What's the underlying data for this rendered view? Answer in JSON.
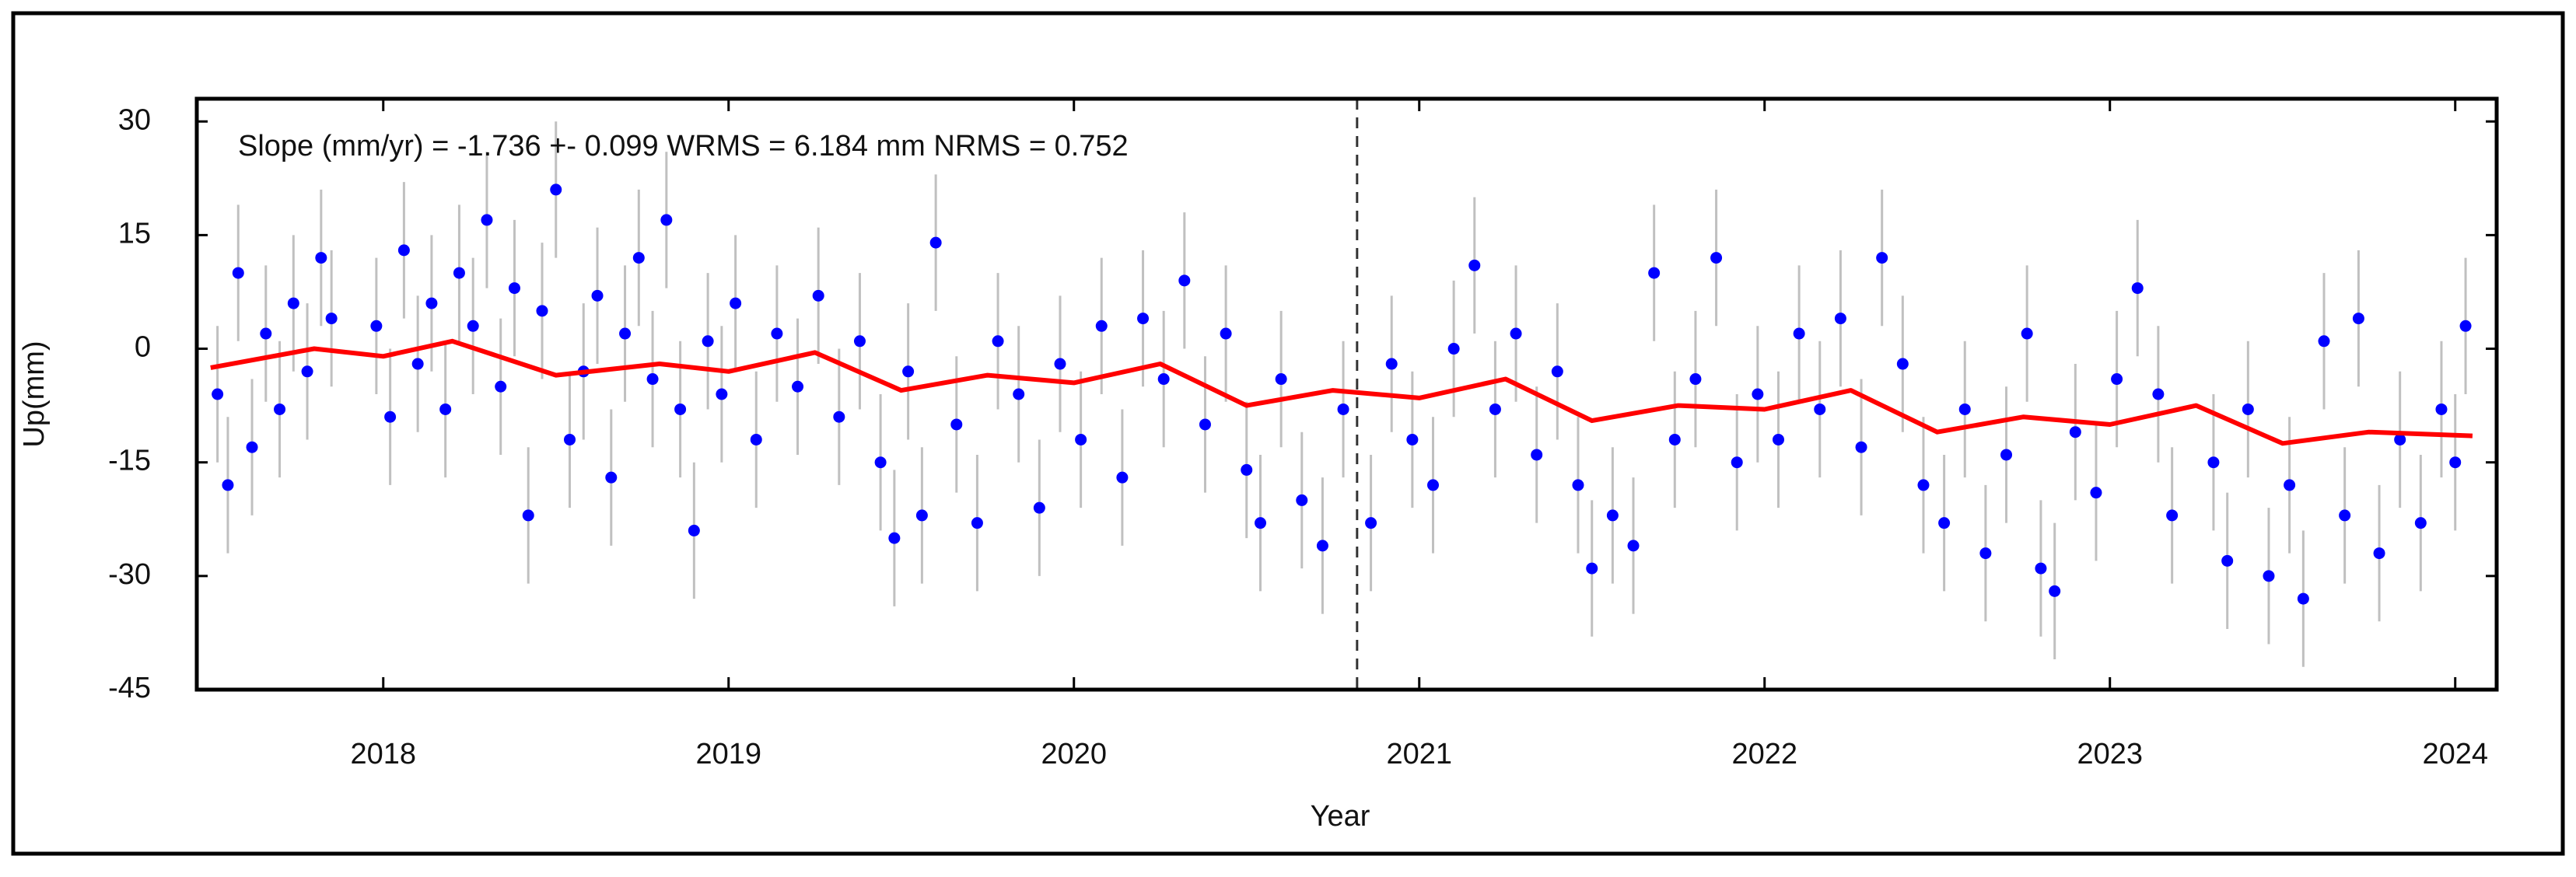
{
  "chart_data": {
    "type": "scatter",
    "annotation": "Slope (mm/yr) = -1.736 +- 0.099 WRMS = 6.184 mm NRMS = 0.752",
    "x_label": "Year",
    "y_label": "Up(mm)",
    "xlim": [
      2017.46,
      2024.12
    ],
    "ylim": [
      -45,
      33
    ],
    "xticks": [
      2018,
      2019,
      2020,
      2021,
      2022,
      2023,
      2024
    ],
    "yticks": [
      30,
      15,
      0,
      -15,
      -30,
      -45
    ],
    "event_line": 2020.82,
    "points": {
      "color": "#0000ff",
      "error_color": "#c0c0c0",
      "error": 9,
      "x": [
        2017.52,
        2017.55,
        2017.58,
        2017.62,
        2017.66,
        2017.7,
        2017.74,
        2017.78,
        2017.82,
        2017.85,
        2017.98,
        2018.02,
        2018.06,
        2018.1,
        2018.14,
        2018.18,
        2018.22,
        2018.26,
        2018.3,
        2018.34,
        2018.38,
        2018.42,
        2018.46,
        2018.5,
        2018.54,
        2018.58,
        2018.62,
        2018.66,
        2018.7,
        2018.74,
        2018.78,
        2018.82,
        2018.86,
        2018.9,
        2018.94,
        2018.98,
        2019.02,
        2019.08,
        2019.14,
        2019.2,
        2019.26,
        2019.32,
        2019.38,
        2019.44,
        2019.48,
        2019.52,
        2019.56,
        2019.6,
        2019.66,
        2019.72,
        2019.78,
        2019.84,
        2019.9,
        2019.96,
        2020.02,
        2020.08,
        2020.14,
        2020.2,
        2020.26,
        2020.32,
        2020.38,
        2020.44,
        2020.5,
        2020.54,
        2020.6,
        2020.66,
        2020.72,
        2020.78,
        2020.86,
        2020.92,
        2020.98,
        2021.04,
        2021.1,
        2021.16,
        2021.22,
        2021.28,
        2021.34,
        2021.4,
        2021.46,
        2021.5,
        2021.56,
        2021.62,
        2021.68,
        2021.74,
        2021.8,
        2021.86,
        2021.92,
        2021.98,
        2022.04,
        2022.1,
        2022.16,
        2022.22,
        2022.28,
        2022.34,
        2022.4,
        2022.46,
        2022.52,
        2022.58,
        2022.64,
        2022.7,
        2022.76,
        2022.8,
        2022.84,
        2022.9,
        2022.96,
        2023.02,
        2023.08,
        2023.14,
        2023.18,
        2023.3,
        2023.34,
        2023.4,
        2023.46,
        2023.52,
        2023.56,
        2023.62,
        2023.68,
        2023.72,
        2023.78,
        2023.84,
        2023.9,
        2023.96,
        2024.0,
        2024.03
      ],
      "values": [
        -6,
        -18,
        10,
        -13,
        2,
        -8,
        6,
        -3,
        12,
        4,
        3,
        -9,
        13,
        -2,
        6,
        -8,
        10,
        3,
        17,
        -5,
        8,
        -22,
        5,
        21,
        -12,
        -3,
        7,
        -17,
        2,
        12,
        -4,
        17,
        -8,
        -24,
        1,
        -6,
        6,
        -12,
        2,
        -5,
        7,
        -9,
        1,
        -15,
        -25,
        -3,
        -22,
        14,
        -10,
        -23,
        1,
        -6,
        -21,
        -2,
        -12,
        3,
        -17,
        4,
        -4,
        9,
        -10,
        2,
        -16,
        -23,
        -4,
        -20,
        -26,
        -8,
        -23,
        -2,
        -12,
        -18,
        0,
        11,
        -8,
        2,
        -14,
        -3,
        -18,
        -29,
        -22,
        -26,
        10,
        -12,
        -4,
        12,
        -15,
        -6,
        -12,
        2,
        -8,
        4,
        -13,
        12,
        -2,
        -18,
        -23,
        -8,
        -27,
        -14,
        2,
        -29,
        -32,
        -11,
        -19,
        -4,
        8,
        -6,
        -22,
        -15,
        -28,
        -8,
        -30,
        -18,
        -33,
        1,
        -22,
        4,
        -27,
        -12,
        -23,
        -8,
        -15,
        3
      ]
    },
    "fit": {
      "color": "#ff0000",
      "x": [
        2017.5,
        2017.8,
        2018.0,
        2018.2,
        2018.5,
        2018.8,
        2019.0,
        2019.25,
        2019.5,
        2019.75,
        2020.0,
        2020.25,
        2020.5,
        2020.75,
        2021.0,
        2021.25,
        2021.5,
        2021.75,
        2022.0,
        2022.25,
        2022.5,
        2022.75,
        2023.0,
        2023.25,
        2023.5,
        2023.75,
        2024.05
      ],
      "values": [
        -2.5,
        0,
        -1,
        1,
        -3.5,
        -2,
        -3,
        -0.5,
        -5.5,
        -3.5,
        -4.5,
        -2,
        -7.5,
        -5.5,
        -6.5,
        -4,
        -9.5,
        -7.5,
        -8,
        -5.5,
        -11,
        -9,
        -10,
        -7.5,
        -12.5,
        -11,
        -11.5
      ]
    }
  }
}
